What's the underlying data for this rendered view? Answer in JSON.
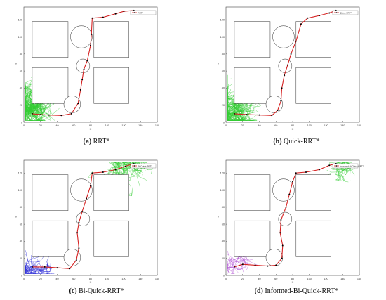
{
  "panels": [
    {
      "id": "a",
      "caption_letter": "(a)",
      "caption_text": "RRT*",
      "legend": "RRT*",
      "axis": {
        "xlabel": "X",
        "ylabel": "Y",
        "xticks": [
          "0",
          "20",
          "40",
          "60",
          "80",
          "100",
          "120",
          "140",
          "160"
        ],
        "yticks": [
          "0",
          "20",
          "40",
          "60",
          "80",
          "100",
          "120"
        ]
      },
      "colors": {
        "path": "#d62020",
        "tree_start": "#33cc33",
        "tree_goal": "#33cc33"
      },
      "path": [
        [
          10,
          10
        ],
        [
          20,
          9
        ],
        [
          30,
          8.5
        ],
        [
          45,
          8
        ],
        [
          57,
          10
        ],
        [
          65,
          22
        ],
        [
          68,
          38
        ],
        [
          70,
          50
        ],
        [
          72,
          62
        ],
        [
          76,
          72
        ],
        [
          80,
          90
        ],
        [
          81,
          103
        ],
        [
          82,
          122
        ],
        [
          95,
          123
        ],
        [
          110,
          127
        ],
        [
          120,
          130
        ],
        [
          132,
          131
        ]
      ]
    },
    {
      "id": "b",
      "caption_letter": "(b)",
      "caption_text": "Quick-RRT*",
      "legend": "Quick-RRT*",
      "axis": {
        "xlabel": "X",
        "ylabel": "Y",
        "xticks": [
          "0",
          "20",
          "40",
          "60",
          "80",
          "100",
          "120",
          "140",
          "160"
        ],
        "yticks": [
          "0",
          "20",
          "40",
          "60",
          "80",
          "100",
          "120"
        ]
      },
      "colors": {
        "path": "#d62020",
        "tree_start": "#33cc33",
        "tree_goal": "#33cc33"
      },
      "path": [
        [
          10,
          10
        ],
        [
          25,
          9
        ],
        [
          40,
          8.5
        ],
        [
          55,
          8
        ],
        [
          62,
          14
        ],
        [
          66,
          25
        ],
        [
          67,
          40
        ],
        [
          70,
          55
        ],
        [
          74,
          67
        ],
        [
          78,
          80
        ],
        [
          84,
          95
        ],
        [
          90,
          115
        ],
        [
          98,
          122
        ],
        [
          112,
          125
        ],
        [
          124,
          128
        ],
        [
          132,
          131
        ]
      ]
    },
    {
      "id": "c",
      "caption_letter": "(c)",
      "caption_text": "Bi-Quick-RRT*",
      "legend": "Bi-Quick-RRT*",
      "axis": {
        "xlabel": "X",
        "ylabel": "Y",
        "xticks": [
          "0",
          "20",
          "40",
          "60",
          "80",
          "100",
          "120",
          "140",
          "160"
        ],
        "yticks": [
          "0",
          "20",
          "40",
          "60",
          "80",
          "100",
          "120"
        ]
      },
      "colors": {
        "path": "#d62020",
        "tree_start": "#2b2bd6",
        "tree_goal": "#33cc33"
      },
      "path": [
        [
          10,
          10
        ],
        [
          25,
          10
        ],
        [
          40,
          9
        ],
        [
          55,
          8
        ],
        [
          63,
          18
        ],
        [
          66,
          32
        ],
        [
          64,
          50
        ],
        [
          66,
          62
        ],
        [
          70,
          75
        ],
        [
          75,
          90
        ],
        [
          80,
          105
        ],
        [
          82,
          120
        ],
        [
          95,
          121
        ],
        [
          110,
          124
        ],
        [
          122,
          128
        ],
        [
          132,
          131
        ]
      ]
    },
    {
      "id": "d",
      "caption_letter": "(d)",
      "caption_text": "Informed-Bi-Quick-RRT*",
      "legend": "Informed-Bi-Quick-RRT*",
      "axis": {
        "xlabel": "X",
        "ylabel": "Y",
        "xticks": [
          "0",
          "20",
          "40",
          "60",
          "80",
          "100",
          "120",
          "140",
          "160"
        ],
        "yticks": [
          "0",
          "20",
          "40",
          "60",
          "80",
          "100",
          "120"
        ]
      },
      "colors": {
        "path": "#d62020",
        "tree_start": "#b45ad6",
        "tree_goal": "#33cc33"
      },
      "path": [
        [
          10,
          10
        ],
        [
          20,
          13
        ],
        [
          35,
          12
        ],
        [
          50,
          11
        ],
        [
          60,
          12
        ],
        [
          67,
          20
        ],
        [
          68,
          35
        ],
        [
          65,
          50
        ],
        [
          66,
          65
        ],
        [
          72,
          80
        ],
        [
          76,
          95
        ],
        [
          80,
          110
        ],
        [
          84,
          120
        ],
        [
          96,
          121
        ],
        [
          112,
          124
        ],
        [
          124,
          129
        ],
        [
          132,
          131
        ]
      ]
    }
  ]
}
